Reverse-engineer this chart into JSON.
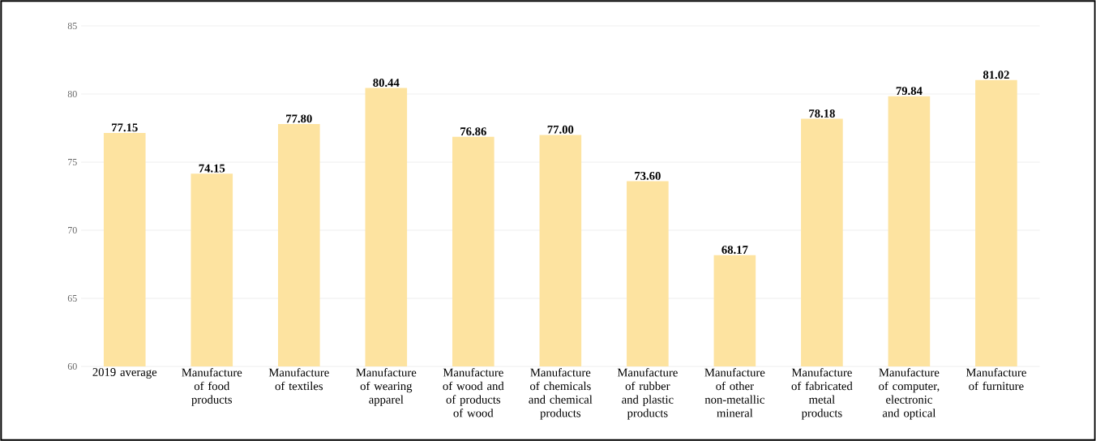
{
  "chart_data": {
    "type": "bar",
    "categories": [
      "2019 average",
      "Manufacture of food products",
      "Manufacture of textiles",
      "Manufacture of wearing apparel",
      "Manufacture of wood and of products of wood",
      "Manufacture of chemicals and chemical products",
      "Manufacture of rubber and plastic products",
      "Manufacture of other non-metallic mineral",
      "Manufacture of fabricated metal products",
      "Manufacture of computer, electronic and optical",
      "Manufacture of furniture"
    ],
    "values": [
      77.15,
      74.15,
      77.8,
      80.44,
      76.86,
      77.0,
      73.6,
      68.17,
      78.18,
      79.84,
      81.02
    ],
    "value_labels": [
      "77.15",
      "74.15",
      "77.80",
      "80.44",
      "76.86",
      "77.00",
      "73.60",
      "68.17",
      "78.18",
      "79.84",
      "81.02"
    ],
    "color": "#fde3a0",
    "ylim": [
      60,
      85
    ],
    "yticks": [
      60,
      65,
      70,
      75,
      80,
      85
    ],
    "grid": "y"
  }
}
